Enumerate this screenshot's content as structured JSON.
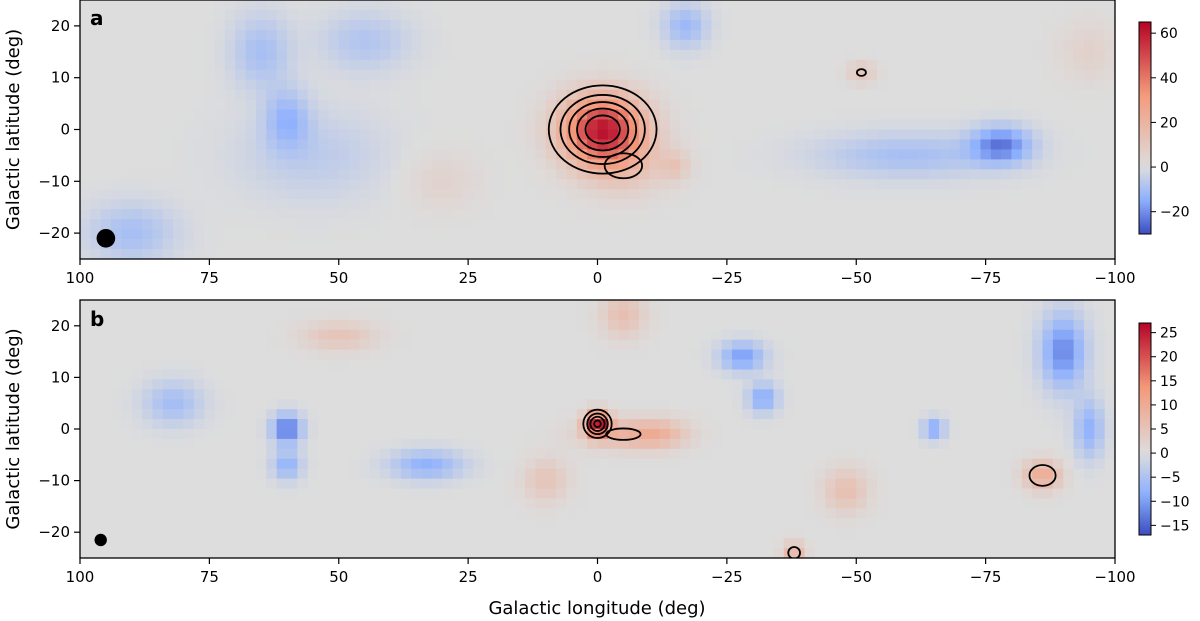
{
  "chart_data": [
    {
      "type": "heatmap",
      "panel_label": "a",
      "xlabel": "",
      "ylabel": "Galactic latitude (deg)",
      "xlim": [
        100,
        -100
      ],
      "ylim": [
        -25,
        25
      ],
      "x_ticks": [
        100,
        75,
        50,
        25,
        0,
        -25,
        -50,
        -75,
        -100
      ],
      "x_tick_labels": [
        "100",
        "75",
        "50",
        "25",
        "0",
        "−25",
        "−50",
        "−75",
        "−100"
      ],
      "y_ticks": [
        20,
        10,
        0,
        -10,
        -20
      ],
      "y_tick_labels": [
        "20",
        "10",
        "0",
        "−10",
        "−20"
      ],
      "colormap": "coolwarm",
      "color_range": [
        -30,
        65
      ],
      "colorbar_ticks": [
        60,
        40,
        20,
        0,
        -20
      ],
      "colorbar_tick_labels": [
        "60",
        "40",
        "20",
        "0",
        "−20"
      ],
      "beam_marker": {
        "l": 95,
        "b": -21,
        "diameter_deg": 3.6
      },
      "features": [
        {
          "kind": "peak",
          "l": -1,
          "b": 0,
          "amplitude": 60,
          "sigma_l": 5.5,
          "sigma_b": 4.5
        },
        {
          "kind": "extension",
          "l": -5,
          "b": -7,
          "amplitude": 12,
          "sigma_l": 6,
          "sigma_b": 4
        },
        {
          "kind": "extension",
          "l": -15,
          "b": -7,
          "amplitude": 10,
          "sigma_l": 2,
          "sigma_b": 2
        },
        {
          "kind": "blob",
          "l": -51,
          "b": 11,
          "amplitude": 11,
          "sigma_l": 2,
          "sigma_b": 1.5
        },
        {
          "kind": "blob",
          "l": 60,
          "b": 2,
          "amplitude": -12,
          "sigma_l": 3,
          "sigma_b": 4
        },
        {
          "kind": "blob",
          "l": 65,
          "b": 15,
          "amplitude": -10,
          "sigma_l": 4,
          "sigma_b": 5
        },
        {
          "kind": "blob",
          "l": 90,
          "b": -20,
          "amplitude": -10,
          "sigma_l": 6,
          "sigma_b": 4
        },
        {
          "kind": "blob",
          "l": -78,
          "b": -3,
          "amplitude": -22,
          "sigma_l": 4,
          "sigma_b": 2.5
        },
        {
          "kind": "blob",
          "l": -60,
          "b": -5,
          "amplitude": -10,
          "sigma_l": 12,
          "sigma_b": 3
        },
        {
          "kind": "blob",
          "l": -17,
          "b": 20,
          "amplitude": -12,
          "sigma_l": 3,
          "sigma_b": 3
        },
        {
          "kind": "blob",
          "l": 45,
          "b": 17,
          "amplitude": -8,
          "sigma_l": 6,
          "sigma_b": 4
        },
        {
          "kind": "blob",
          "l": 55,
          "b": -5,
          "amplitude": -6,
          "sigma_l": 10,
          "sigma_b": 6
        },
        {
          "kind": "blob",
          "l": -95,
          "b": 15,
          "amplitude": 6,
          "sigma_l": 4,
          "sigma_b": 4
        },
        {
          "kind": "blob",
          "l": 30,
          "b": -10,
          "amplitude": 5,
          "sigma_l": 5,
          "sigma_b": 4
        }
      ],
      "contour_levels": [
        10,
        20,
        30,
        40,
        50
      ]
    },
    {
      "type": "heatmap",
      "panel_label": "b",
      "xlabel": "Galactic longitude (deg)",
      "ylabel": "Galactic latitude (deg)",
      "xlim": [
        100,
        -100
      ],
      "ylim": [
        -25,
        25
      ],
      "x_ticks": [
        100,
        75,
        50,
        25,
        0,
        -25,
        -50,
        -75,
        -100
      ],
      "x_tick_labels": [
        "100",
        "75",
        "50",
        "25",
        "0",
        "−25",
        "−50",
        "−75",
        "−100"
      ],
      "y_ticks": [
        20,
        10,
        0,
        -10,
        -20
      ],
      "y_tick_labels": [
        "20",
        "10",
        "0",
        "−10",
        "−20"
      ],
      "colormap": "coolwarm",
      "color_range": [
        -17,
        27
      ],
      "colorbar_ticks": [
        25,
        20,
        15,
        10,
        5,
        0,
        -5,
        -10,
        -15
      ],
      "colorbar_tick_labels": [
        "25",
        "20",
        "15",
        "10",
        "5",
        "0",
        "−5",
        "−10",
        "−15"
      ],
      "beam_marker": {
        "l": 96,
        "b": -21.5,
        "diameter_deg": 2.4
      },
      "features": [
        {
          "kind": "peak",
          "l": 0,
          "b": 1,
          "amplitude": 26,
          "sigma_l": 1.6,
          "sigma_b": 1.6
        },
        {
          "kind": "blob",
          "l": 60,
          "b": 0,
          "amplitude": -14,
          "sigma_l": 2,
          "sigma_b": 2
        },
        {
          "kind": "blob",
          "l": 60,
          "b": -7,
          "amplitude": -8,
          "sigma_l": 2,
          "sigma_b": 2
        },
        {
          "kind": "blob",
          "l": 33,
          "b": -7,
          "amplitude": -8,
          "sigma_l": 5,
          "sigma_b": 2
        },
        {
          "kind": "blob",
          "l": -28,
          "b": 14,
          "amplitude": -10,
          "sigma_l": 3,
          "sigma_b": 2
        },
        {
          "kind": "blob",
          "l": -32,
          "b": 6,
          "amplitude": -9,
          "sigma_l": 2,
          "sigma_b": 2
        },
        {
          "kind": "blob",
          "l": -65,
          "b": 0,
          "amplitude": -9,
          "sigma_l": 1.5,
          "sigma_b": 1.5
        },
        {
          "kind": "blob",
          "l": -90,
          "b": 15,
          "amplitude": -12,
          "sigma_l": 3,
          "sigma_b": 5
        },
        {
          "kind": "blob",
          "l": -95,
          "b": 0,
          "amplitude": -8,
          "sigma_l": 2,
          "sigma_b": 4
        },
        {
          "kind": "blob",
          "l": -86,
          "b": -9,
          "amplitude": 10,
          "sigma_l": 2.5,
          "sigma_b": 2
        },
        {
          "kind": "blob",
          "l": -5,
          "b": -1,
          "amplitude": 7,
          "sigma_l": 6,
          "sigma_b": 2
        },
        {
          "kind": "blob",
          "l": -12,
          "b": -1,
          "amplitude": 6,
          "sigma_l": 4,
          "sigma_b": 2
        },
        {
          "kind": "blob",
          "l": -5,
          "b": 22,
          "amplitude": 6,
          "sigma_l": 3,
          "sigma_b": 3
        },
        {
          "kind": "blob",
          "l": 50,
          "b": 18,
          "amplitude": 5,
          "sigma_l": 5,
          "sigma_b": 2
        },
        {
          "kind": "blob",
          "l": 10,
          "b": -10,
          "amplitude": 5,
          "sigma_l": 3,
          "sigma_b": 3
        },
        {
          "kind": "blob",
          "l": -48,
          "b": -12,
          "amplitude": 6,
          "sigma_l": 3,
          "sigma_b": 3
        },
        {
          "kind": "blob",
          "l": 82,
          "b": 5,
          "amplitude": -6,
          "sigma_l": 4,
          "sigma_b": 3
        },
        {
          "kind": "blob",
          "l": -38,
          "b": -24,
          "amplitude": 8,
          "sigma_l": 1.5,
          "sigma_b": 1.5
        }
      ],
      "contour_levels": [
        6,
        12,
        18,
        24
      ]
    }
  ]
}
